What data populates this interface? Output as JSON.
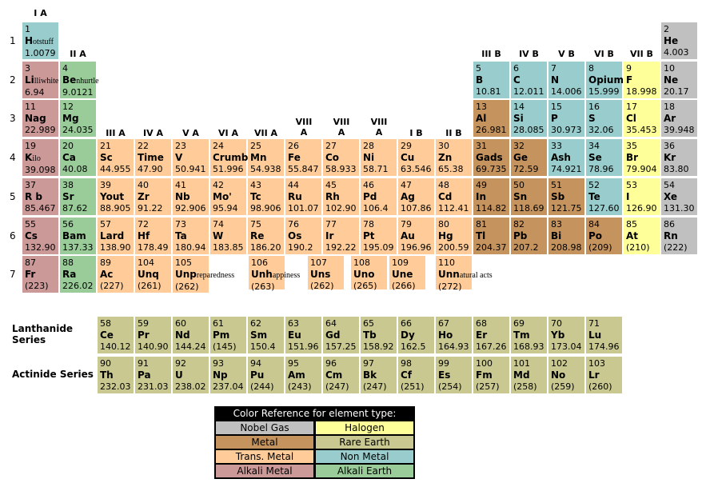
{
  "periodic_table": {
    "group_labels": [
      "I A",
      "II A",
      "III A",
      "IV A",
      "V A",
      "VI A",
      "VII A",
      "VIII A",
      "VIII A",
      "VIII A",
      "I B",
      "II B",
      "III B",
      "IV B",
      "V B",
      "VI B",
      "VII B"
    ],
    "period_labels": [
      1,
      2,
      3,
      4,
      5,
      6,
      7
    ],
    "elements": [
      {
        "number": 1,
        "symbol": "H",
        "suffix": "otstuff",
        "mass": "1.0079",
        "type": 5
      },
      {
        "number": 2,
        "symbol": "He",
        "mass": "4.003",
        "type": 0
      },
      {
        "number": 3,
        "symbol": "Li",
        "suffix": "lliwhite",
        "mass": "6.94",
        "type": 6
      },
      {
        "number": 4,
        "symbol": "Be",
        "suffix": "nhurtle",
        "mass": "9.0121",
        "type": 7
      },
      {
        "number": 5,
        "symbol": "B",
        "mass": "10.81",
        "type": 5
      },
      {
        "number": 6,
        "symbol": "C",
        "mass": "12.011",
        "type": 5
      },
      {
        "number": 7,
        "symbol": "N",
        "mass": "14.006",
        "type": 5
      },
      {
        "number": 8,
        "symbol": "Opium",
        "mass": "15.999",
        "type": 5
      },
      {
        "number": 9,
        "symbol": "F",
        "mass": "18.998",
        "type": 1
      },
      {
        "number": 10,
        "symbol": "Ne",
        "mass": "20.17",
        "type": 0
      },
      {
        "number": 11,
        "symbol": "Nag",
        "mass": "22.989",
        "type": 6
      },
      {
        "number": 12,
        "symbol": "Mg",
        "mass": "24.035",
        "type": 7
      },
      {
        "number": 13,
        "symbol": "Al",
        "mass": "26.981",
        "type": 2
      },
      {
        "number": 14,
        "symbol": "Si",
        "mass": "28.085",
        "type": 5
      },
      {
        "number": 15,
        "symbol": "P",
        "mass": "30.973",
        "type": 5
      },
      {
        "number": 16,
        "symbol": "S",
        "mass": "32.06",
        "type": 5
      },
      {
        "number": 17,
        "symbol": "Cl",
        "mass": "35.453",
        "type": 1
      },
      {
        "number": 18,
        "symbol": "Ar",
        "mass": "39.948",
        "type": 0
      },
      {
        "number": 19,
        "symbol": "K",
        "suffix": "ilo",
        "mass": "39.098",
        "type": 6
      },
      {
        "number": 20,
        "symbol": "Ca",
        "mass": "40.08",
        "type": 7
      },
      {
        "number": 21,
        "symbol": "Sc",
        "mass": "44.955",
        "type": 4
      },
      {
        "number": 22,
        "symbol": "Time",
        "mass": "47.90",
        "type": 4
      },
      {
        "number": 23,
        "symbol": "V",
        "mass": "50.941",
        "type": 4
      },
      {
        "number": 24,
        "symbol": "Crumb",
        "mass": "51.996",
        "type": 4
      },
      {
        "number": 25,
        "symbol": "Mn",
        "mass": "54.938",
        "type": 4
      },
      {
        "number": 26,
        "symbol": "Fe",
        "mass": "55.847",
        "type": 4
      },
      {
        "number": 27,
        "symbol": "Co",
        "mass": "58.933",
        "type": 4
      },
      {
        "number": 28,
        "symbol": "Ni",
        "mass": "58.71",
        "type": 4
      },
      {
        "number": 29,
        "symbol": "Cu",
        "mass": "63.546",
        "type": 4
      },
      {
        "number": 30,
        "symbol": "Zn",
        "mass": "65.38",
        "type": 4
      },
      {
        "number": 31,
        "symbol": "Gads",
        "mass": "69.735",
        "type": 2
      },
      {
        "number": 32,
        "symbol": "Ge",
        "mass": "72.59",
        "type": 2
      },
      {
        "number": 33,
        "symbol": "Ash",
        "mass": "74.921",
        "type": 5
      },
      {
        "number": 34,
        "symbol": "Se",
        "mass": "78.96",
        "type": 5
      },
      {
        "number": 35,
        "symbol": "Br",
        "mass": "79.904",
        "type": 1
      },
      {
        "number": 36,
        "symbol": "Kr",
        "mass": "83.80",
        "type": 0
      },
      {
        "number": 37,
        "symbol": "R b",
        "mass": "85.467",
        "type": 6
      },
      {
        "number": 38,
        "symbol": "Sr",
        "mass": "87.62",
        "type": 7
      },
      {
        "number": 39,
        "symbol": "Yout",
        "mass": "88.905",
        "type": 4
      },
      {
        "number": 40,
        "symbol": "Zr",
        "mass": "91.22",
        "type": 4
      },
      {
        "number": 41,
        "symbol": "Nb",
        "mass": "92.906",
        "type": 4
      },
      {
        "number": 42,
        "symbol": "Mo'",
        "mass": "95.94",
        "type": 4
      },
      {
        "number": 43,
        "symbol": "Tc",
        "mass": "98.906",
        "type": 4
      },
      {
        "number": 44,
        "symbol": "Ru",
        "mass": "101.07",
        "type": 4
      },
      {
        "number": 45,
        "symbol": "Rh",
        "mass": "102.90",
        "type": 4
      },
      {
        "number": 46,
        "symbol": "Pd",
        "mass": "106.4",
        "type": 4
      },
      {
        "number": 47,
        "symbol": "Ag",
        "mass": "107.86",
        "type": 4
      },
      {
        "number": 48,
        "symbol": "Cd",
        "mass": "112.41",
        "type": 4
      },
      {
        "number": 49,
        "symbol": "In",
        "mass": "114.82",
        "type": 2
      },
      {
        "number": 50,
        "symbol": "Sn",
        "mass": "118.69",
        "type": 2
      },
      {
        "number": 51,
        "symbol": "Sb",
        "mass": "121.75",
        "type": 2
      },
      {
        "number": 52,
        "symbol": "Te",
        "mass": "127.60",
        "type": 5
      },
      {
        "number": 53,
        "symbol": "I",
        "mass": "126.90",
        "type": 1
      },
      {
        "number": 54,
        "symbol": "Xe",
        "mass": "131.30",
        "type": 0
      },
      {
        "number": 55,
        "symbol": "Cs",
        "mass": "132.90",
        "type": 6
      },
      {
        "number": 56,
        "symbol": "Bam",
        "mass": "137.33",
        "type": 7
      },
      {
        "number": 57,
        "symbol": "Lard",
        "mass": "138.90",
        "type": 4
      },
      {
        "number": 72,
        "symbol": "Hf",
        "mass": "178.49",
        "type": 4
      },
      {
        "number": 73,
        "symbol": "Ta",
        "mass": "180.94",
        "type": 4
      },
      {
        "number": 74,
        "symbol": "W",
        "mass": "183.85",
        "type": 4
      },
      {
        "number": 75,
        "symbol": "Re",
        "mass": "186.20",
        "type": 4
      },
      {
        "number": 76,
        "symbol": "Os",
        "mass": "190.2",
        "type": 4
      },
      {
        "number": 77,
        "symbol": "Ir",
        "mass": "192.22",
        "type": 4
      },
      {
        "number": 78,
        "symbol": "Pt",
        "mass": "195.09",
        "type": 4
      },
      {
        "number": 79,
        "symbol": "Au",
        "mass": "196.96",
        "type": 4
      },
      {
        "number": 80,
        "symbol": "Hg",
        "mass": "200.59",
        "type": 4
      },
      {
        "number": 81,
        "symbol": "Tl",
        "mass": "204.37",
        "type": 2
      },
      {
        "number": 82,
        "symbol": "Pb",
        "mass": "207.2",
        "type": 2
      },
      {
        "number": 83,
        "symbol": "Bi",
        "mass": "208.98",
        "type": 2
      },
      {
        "number": 84,
        "symbol": "Po",
        "mass": "(209)",
        "type": 2
      },
      {
        "number": 85,
        "symbol": "At",
        "mass": "(210)",
        "type": 1
      },
      {
        "number": 86,
        "symbol": "Rn",
        "mass": "(222)",
        "type": 0
      },
      {
        "number": 87,
        "symbol": "Fr",
        "mass": "(223)",
        "type": 6
      },
      {
        "number": 88,
        "symbol": "Ra",
        "mass": "226.02",
        "type": 7
      },
      {
        "number": 89,
        "symbol": "Ac",
        "mass": "(227)",
        "type": 4
      },
      {
        "number": 104,
        "symbol": "Unq",
        "mass": "(261)",
        "type": 4
      },
      {
        "number": 105,
        "symbol": "Unp",
        "suffix": "reparedness",
        "mass": "(262)",
        "type": 4
      },
      {
        "number": 106,
        "symbol": "Unh",
        "suffix": "appiness",
        "mass": "(263)",
        "type": 4
      },
      {
        "number": 107,
        "symbol": "Uns",
        "mass": "(262)",
        "type": 4
      },
      {
        "number": 108,
        "symbol": "Uno",
        "mass": "(265)",
        "type": 4
      },
      {
        "number": 109,
        "symbol": "Une",
        "mass": "(266)",
        "type": 4
      },
      {
        "number": 110,
        "symbol": "Unn",
        "suffix": "atural acts",
        "mass": "(272)",
        "type": 4
      }
    ],
    "series": [
      {
        "label": "Lanthanide Series",
        "elements": [
          {
            "number": 58,
            "symbol": "Ce",
            "mass": "140.12",
            "type": 3
          },
          {
            "number": 59,
            "symbol": "Pr",
            "mass": "140.90",
            "type": 3
          },
          {
            "number": 60,
            "symbol": "Nd",
            "mass": "144.24",
            "type": 3
          },
          {
            "number": 61,
            "symbol": "Pm",
            "mass": "(145)",
            "type": 3
          },
          {
            "number": 62,
            "symbol": "Sm",
            "mass": "150.4",
            "type": 3
          },
          {
            "number": 63,
            "symbol": "Eu",
            "mass": "151.96",
            "type": 3
          },
          {
            "number": 64,
            "symbol": "Gd",
            "mass": "157.25",
            "type": 3
          },
          {
            "number": 65,
            "symbol": "Tb",
            "mass": "158.92",
            "type": 3
          },
          {
            "number": 66,
            "symbol": "Dy",
            "mass": "162.5",
            "type": 3
          },
          {
            "number": 67,
            "symbol": "Ho",
            "mass": "164.93",
            "type": 3
          },
          {
            "number": 68,
            "symbol": "Er",
            "mass": "167.26",
            "type": 3
          },
          {
            "number": 69,
            "symbol": "Tm",
            "mass": "168.93",
            "type": 3
          },
          {
            "number": 70,
            "symbol": "Yb",
            "mass": "173.04",
            "type": 3
          },
          {
            "number": 71,
            "symbol": "Lu",
            "mass": "174.96",
            "type": 3
          }
        ]
      },
      {
        "label": "Actinide Series",
        "elements": [
          {
            "number": 90,
            "symbol": "Th",
            "mass": "232.03",
            "type": 3
          },
          {
            "number": 91,
            "symbol": "Pa",
            "mass": "231.03",
            "type": 3
          },
          {
            "number": 92,
            "symbol": "U",
            "mass": "238.02",
            "type": 3
          },
          {
            "number": 93,
            "symbol": "Np",
            "mass": "237.04",
            "type": 3
          },
          {
            "number": 94,
            "symbol": "Pu",
            "mass": "(244)",
            "type": 3
          },
          {
            "number": 95,
            "symbol": "Am",
            "mass": "(243)",
            "type": 3
          },
          {
            "number": 96,
            "symbol": "Cm",
            "mass": "(247)",
            "type": 3
          },
          {
            "number": 97,
            "symbol": "Bk",
            "mass": "(247)",
            "type": 3
          },
          {
            "number": 98,
            "symbol": "Cf",
            "mass": "(251)",
            "type": 3
          },
          {
            "number": 99,
            "symbol": "Es",
            "mass": "(254)",
            "type": 3
          },
          {
            "number": 100,
            "symbol": "Fm",
            "mass": "(257)",
            "type": 3
          },
          {
            "number": 101,
            "symbol": "Md",
            "mass": "(258)",
            "type": 3
          },
          {
            "number": 102,
            "symbol": "No",
            "mass": "(259)",
            "type": 3
          },
          {
            "number": 103,
            "symbol": "Lr",
            "mass": "(260)",
            "type": 3
          }
        ]
      }
    ]
  },
  "legend": {
    "title": "Color Reference for element type:",
    "items": [
      {
        "label": "Nobel Gas",
        "color": "#c0c0c0"
      },
      {
        "label": "Halogen",
        "color": "#ffff99"
      },
      {
        "label": "Metal",
        "color": "#c4935e"
      },
      {
        "label": "Rare Earth",
        "color": "#c8c890"
      },
      {
        "label": "Trans. Metal",
        "color": "#ffcc99"
      },
      {
        "label": "Non Metal",
        "color": "#99cccc"
      },
      {
        "label": "Alkali Metal",
        "color": "#cc9999"
      },
      {
        "label": "Alkali Earth",
        "color": "#99cc99"
      }
    ]
  }
}
